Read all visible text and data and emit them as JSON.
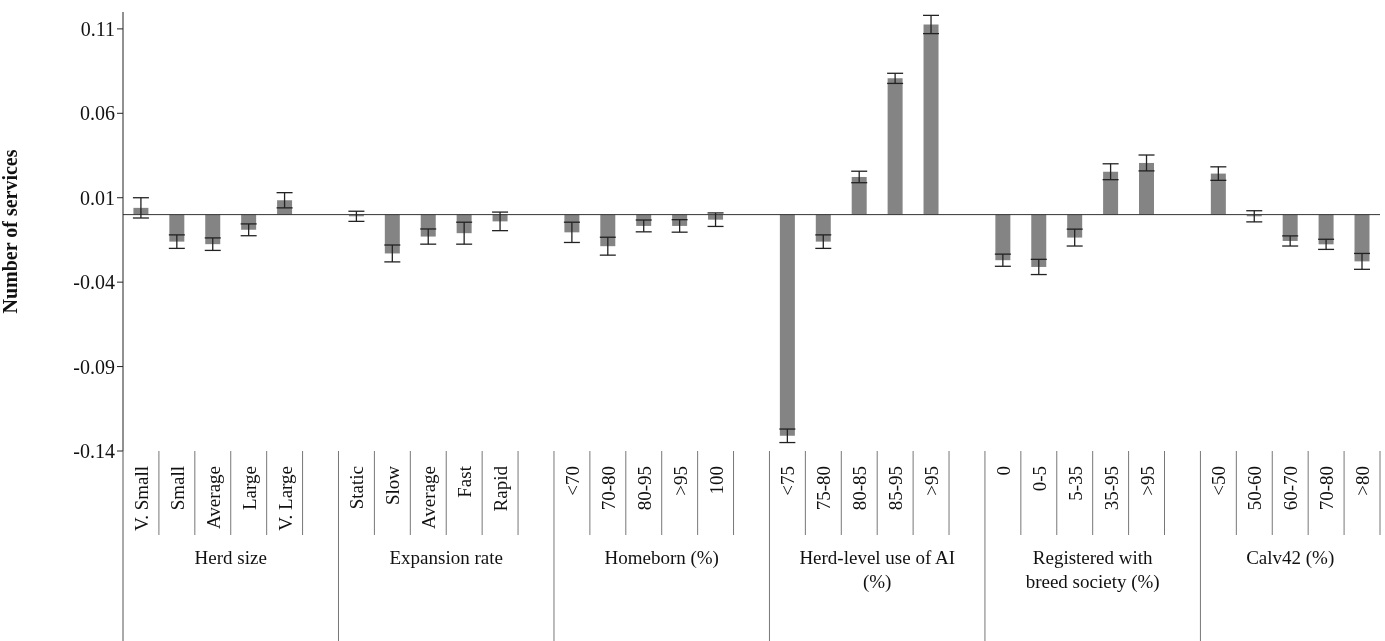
{
  "chart_data": {
    "type": "bar",
    "ylabel": "Number of services",
    "color": "#848484",
    "categories": [
      "V. Small",
      "Small",
      "Average",
      "Large",
      "V. Large",
      null,
      "Static",
      "Slow",
      "Average",
      "Fast",
      "Rapid",
      null,
      "<70",
      "70-80",
      "80-95",
      ">95",
      "100",
      null,
      "<75",
      "75-80",
      "80-85",
      "85-95",
      ">95",
      null,
      "0",
      "0-5",
      "5-35",
      "35-95",
      ">95",
      null,
      "<50",
      "50-60",
      "60-70",
      "70-80",
      ">80"
    ],
    "values": [
      0.004,
      -0.016,
      -0.0175,
      -0.009,
      0.0085,
      null,
      -0.001,
      -0.023,
      -0.013,
      -0.011,
      -0.004,
      null,
      -0.0105,
      -0.0187,
      -0.0067,
      -0.0067,
      -0.003,
      null,
      -0.131,
      -0.016,
      0.0223,
      0.0807,
      0.1126,
      null,
      -0.027,
      -0.031,
      -0.0136,
      0.0254,
      0.0306,
      null,
      0.0243,
      -0.001,
      -0.0156,
      -0.0176,
      -0.0277
    ],
    "errors": [
      0.006,
      0.004,
      0.0037,
      0.0035,
      0.0045,
      null,
      0.003,
      0.005,
      0.0045,
      0.0065,
      0.0055,
      null,
      0.006,
      0.0053,
      0.0035,
      0.0037,
      0.004,
      null,
      0.004,
      0.004,
      0.0034,
      0.003,
      0.0054,
      null,
      0.0036,
      0.0045,
      0.005,
      0.0047,
      0.0047,
      null,
      0.004,
      0.0033,
      0.003,
      0.003,
      0.0047
    ],
    "ylim": [
      -0.14,
      0.12
    ],
    "yticks": [
      -0.14,
      -0.09,
      -0.04,
      0.01,
      0.06,
      0.11
    ],
    "annotations": [
      "Herd size",
      "Expansion rate",
      "Homeborn (%)",
      "Herd-level use of AI (%)",
      "Registered with breed society (%)",
      "Calv42 (%)"
    ]
  }
}
